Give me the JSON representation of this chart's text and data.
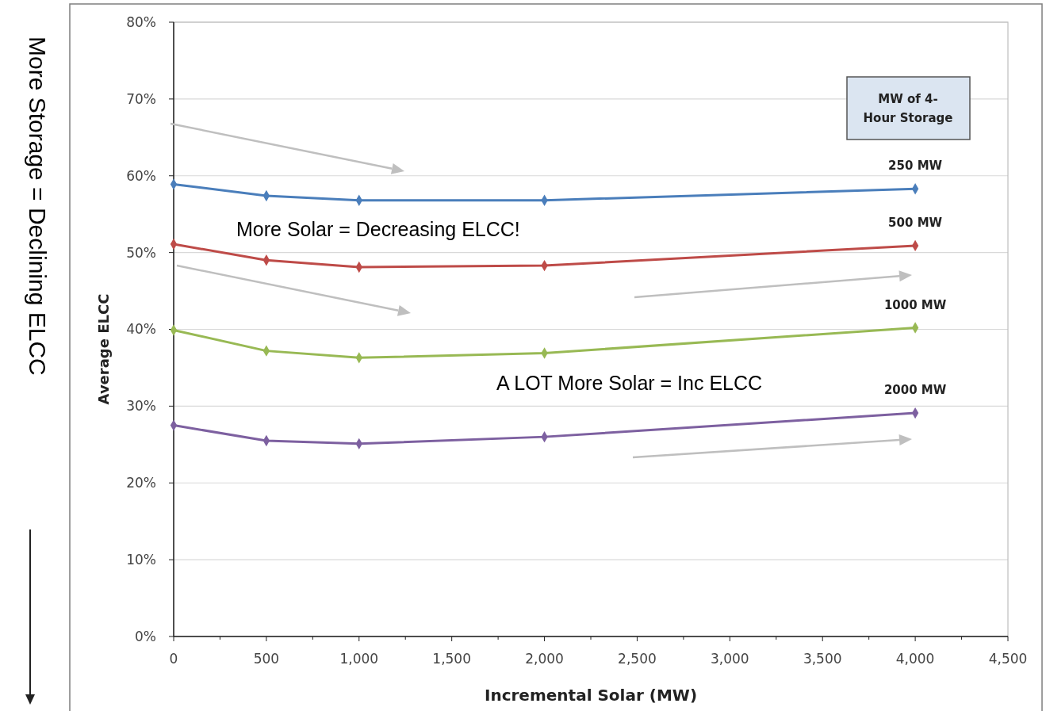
{
  "chart_data": {
    "type": "line",
    "xlabel": "Incremental Solar (MW)",
    "ylabel": "Average ELCC",
    "legend_title": "MW of 4-Hour Storage",
    "x": [
      0,
      500,
      1000,
      2000,
      4000
    ],
    "series": [
      {
        "name": "250 MW",
        "color": "#4a7ebb",
        "values": [
          58.9,
          57.4,
          56.8,
          56.8,
          58.3
        ]
      },
      {
        "name": "500 MW",
        "color": "#be4b48",
        "values": [
          51.1,
          49.0,
          48.1,
          48.3,
          50.9
        ]
      },
      {
        "name": "1000 MW",
        "color": "#98b954",
        "values": [
          39.9,
          37.2,
          36.3,
          36.9,
          40.2
        ]
      },
      {
        "name": "2000 MW",
        "color": "#7d60a0",
        "values": [
          27.5,
          25.5,
          25.1,
          26.0,
          29.1
        ]
      }
    ],
    "xlim": [
      0,
      4500
    ],
    "xticks": [
      0,
      500,
      {
        "value": 1000,
        "label": "1,000"
      },
      {
        "value": 1500,
        "label": "1,500"
      },
      {
        "value": 2000,
        "label": "2,000"
      },
      {
        "value": 2500,
        "label": "2,500"
      },
      {
        "value": 3000,
        "label": "3,000"
      },
      {
        "value": 3500,
        "label": "3,500"
      },
      {
        "value": 4000,
        "label": "4,000"
      },
      {
        "value": 4500,
        "label": "4,500"
      }
    ],
    "ylim": [
      0,
      80
    ],
    "yticks": [
      {
        "value": 0,
        "label": "0%"
      },
      {
        "value": 10,
        "label": "10%"
      },
      {
        "value": 20,
        "label": "20%"
      },
      {
        "value": 30,
        "label": "30%"
      },
      {
        "value": 40,
        "label": "40%"
      },
      {
        "value": 50,
        "label": "50%"
      },
      {
        "value": 60,
        "label": "60%"
      },
      {
        "value": 70,
        "label": "70%"
      },
      {
        "value": 80,
        "label": "80%"
      }
    ],
    "grid": "y",
    "marker": "diamond",
    "line_style": "solid",
    "annotations": [
      "More Solar = Decreasing ELCC!",
      "A LOT More Solar = Inc ELCC",
      "More Storage = Declining ELCC"
    ]
  }
}
